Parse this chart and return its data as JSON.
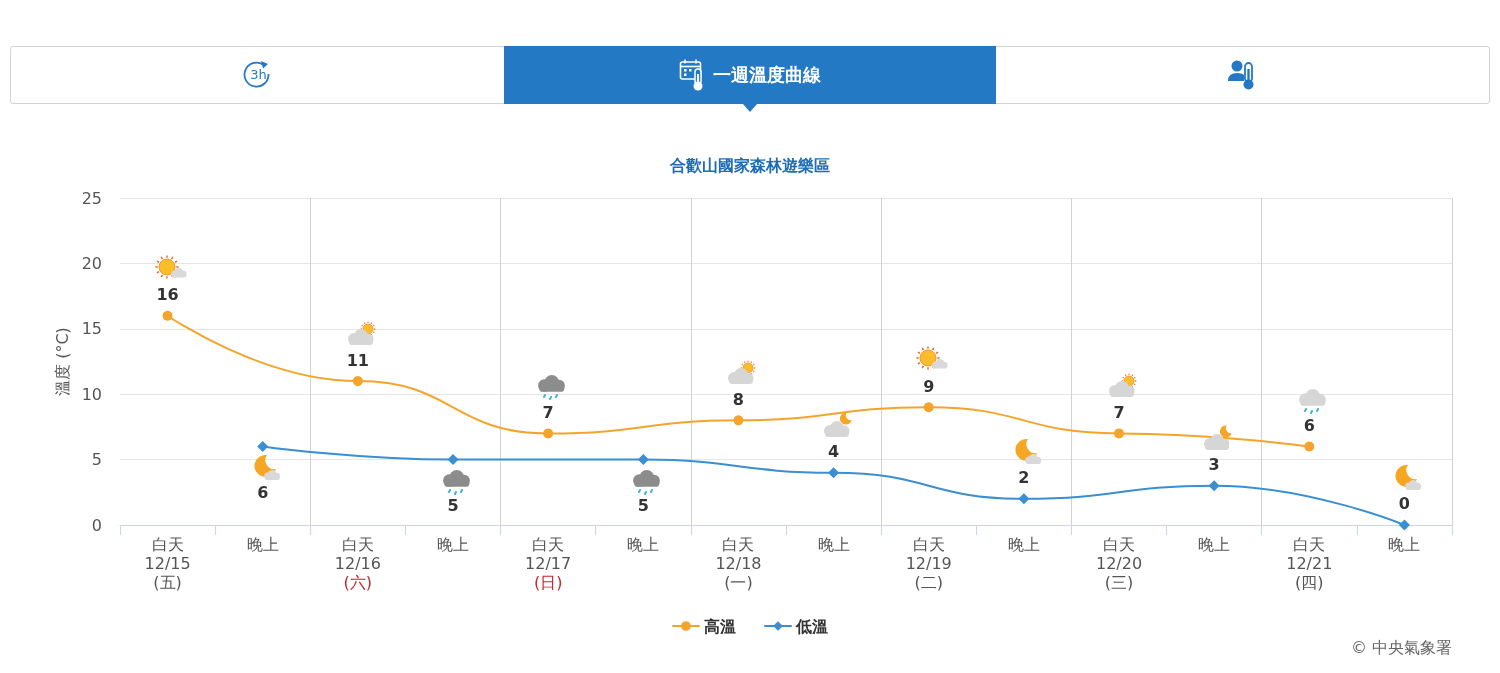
{
  "chart_data": {
    "type": "line",
    "title": "合歡山國家森林遊樂區",
    "ylabel": "溫度 (°C)",
    "categories": [
      "白天\n12/15\n(五)",
      "晚上",
      "白天\n12/16\n(六)",
      "晚上",
      "白天\n12/17\n(日)",
      "晚上",
      "白天\n12/18\n(一)",
      "晚上",
      "白天\n12/19\n(二)",
      "晚上",
      "白天\n12/20\n(三)",
      "晚上",
      "白天\n12/21\n(四)",
      "晚上"
    ],
    "series": [
      {
        "name": "高溫",
        "color": "#f5a42b",
        "marker": "circle",
        "values": [
          16,
          null,
          11,
          null,
          7,
          null,
          8,
          null,
          9,
          null,
          7,
          null,
          6,
          null
        ]
      },
      {
        "name": "低溫",
        "color": "#3a8ed2",
        "marker": "diamond",
        "values": [
          null,
          6,
          null,
          5,
          null,
          5,
          null,
          4,
          null,
          2,
          null,
          3,
          null,
          0
        ]
      }
    ],
    "ylim": [
      0,
      25
    ],
    "yticks": [
      0,
      5,
      10,
      15,
      20,
      25
    ],
    "grid": true,
    "legend": "bottom",
    "data_labels": true,
    "line_style": "solid",
    "annotations": [
      "3h",
      "一週溫度曲線",
      "© 中央氣象署"
    ]
  }
}
